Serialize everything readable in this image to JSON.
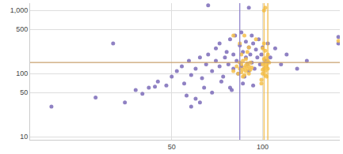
{
  "chart_data": {
    "type": "scatter",
    "log": true,
    "grid": true,
    "xlim": [
      17,
      180
    ],
    "ylim": [
      9,
      1300
    ],
    "xticks": [
      50,
      100
    ],
    "yticks": [
      10,
      50,
      100,
      500,
      {
        "value": 1000,
        "label": "1,000"
      }
    ],
    "series": [
      {
        "type": "scatter",
        "color": "#7b6bb8",
        "x": [
          20,
          28,
          32,
          38,
          40,
          42,
          45,
          48,
          50,
          52,
          54,
          55,
          57,
          58,
          60,
          60,
          62,
          63,
          65,
          66,
          68,
          68,
          70,
          70,
          72,
          72,
          74,
          75,
          76,
          77,
          78,
          78,
          80,
          80,
          81,
          82,
          83,
          84,
          85,
          85,
          86,
          87,
          88,
          88,
          89,
          90,
          90,
          91,
          92,
          92,
          93,
          94,
          95,
          96,
          97,
          98,
          99,
          100,
          102,
          104,
          106,
          110,
          115,
          120,
          66,
          90,
          44,
          35,
          58,
          62,
          178,
          178,
          130,
          140,
          56,
          64,
          73,
          79,
          86,
          93
        ],
        "values": [
          30,
          42,
          300,
          55,
          48,
          60,
          75,
          65,
          90,
          110,
          130,
          70,
          160,
          95,
          120,
          40,
          180,
          85,
          140,
          200,
          110,
          50,
          250,
          160,
          130,
          300,
          90,
          180,
          220,
          140,
          350,
          60,
          120,
          200,
          400,
          160,
          100,
          280,
          130,
          450,
          220,
          90,
          180,
          320,
          140,
          260,
          110,
          200,
          400,
          150,
          300,
          120,
          240,
          180,
          350,
          140,
          200,
          260,
          160,
          300,
          180,
          250,
          140,
          200,
          1200,
          1100,
          62,
          35,
          30,
          35,
          300,
          380,
          120,
          160,
          45,
          60,
          75,
          55,
          70,
          65
        ]
      },
      {
        "type": "scatter",
        "color": "#f5c04a",
        "x": [
          80,
          82,
          83,
          84,
          84,
          85,
          85,
          86,
          86,
          87,
          87,
          88,
          88,
          89,
          89,
          90,
          90,
          91,
          91,
          92,
          86,
          88,
          84,
          90,
          87,
          85,
          89,
          99,
          100,
          100,
          101,
          101,
          102,
          102,
          103,
          103,
          104,
          104,
          100,
          101,
          102,
          103,
          99,
          104,
          102,
          101,
          103,
          100,
          102,
          105,
          80,
          95,
          102,
          178
        ],
        "values": [
          110,
          130,
          100,
          120,
          150,
          105,
          140,
          115,
          160,
          125,
          95,
          135,
          110,
          145,
          120,
          130,
          100,
          150,
          115,
          125,
          90,
          170,
          300,
          260,
          400,
          200,
          220,
          80,
          100,
          140,
          120,
          170,
          110,
          150,
          90,
          130,
          160,
          200,
          250,
          300,
          230,
          180,
          70,
          120,
          1100,
          1000,
          140,
          115,
          125,
          150,
          400,
          350,
          95,
          330
        ]
      },
      {
        "type": "line",
        "color": "#8a7cc8",
        "x": [
          84,
          84
        ],
        "values": [
          9,
          1300
        ]
      },
      {
        "type": "line",
        "color": "#f0b840",
        "x": [
          101,
          101
        ],
        "values": [
          9,
          1300
        ]
      },
      {
        "type": "line",
        "color": "#f0b840",
        "x": [
          104,
          104
        ],
        "values": [
          9,
          1300
        ]
      },
      {
        "type": "line",
        "color": "#c9a06e",
        "x": [
          17,
          180
        ],
        "values": [
          150,
          150
        ]
      }
    ]
  }
}
